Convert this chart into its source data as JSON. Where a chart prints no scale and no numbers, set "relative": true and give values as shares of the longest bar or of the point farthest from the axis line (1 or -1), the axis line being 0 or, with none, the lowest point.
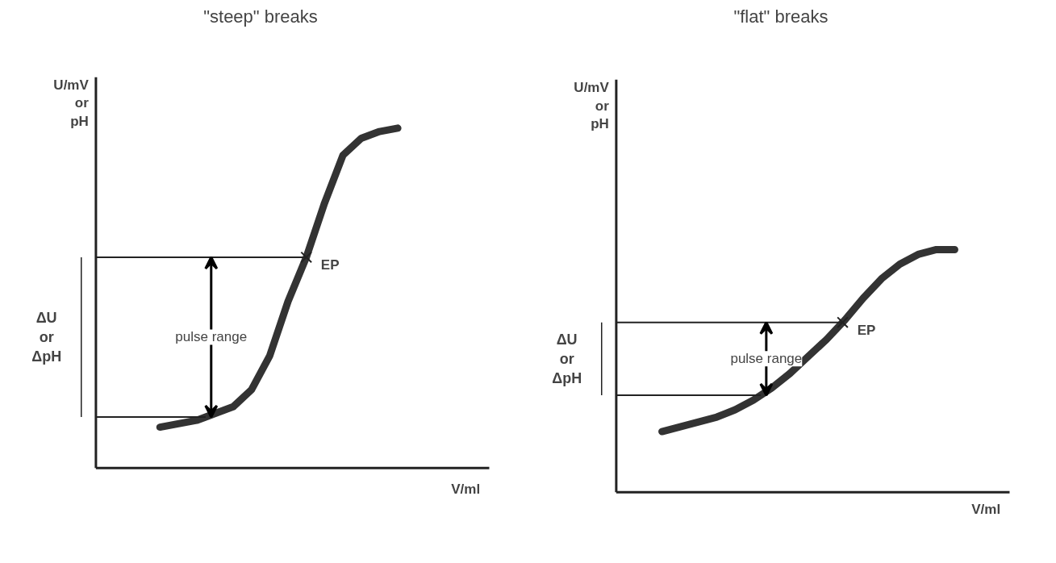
{
  "chart_data": [
    {
      "type": "line",
      "title": "\"steep\" breaks",
      "xlabel": "V/ml",
      "ylabel": "U/mV or pH",
      "relative": true,
      "categories": [
        null,
        null,
        null,
        null,
        null,
        null,
        null,
        null,
        null,
        null,
        null,
        null,
        null,
        null,
        null,
        null,
        null,
        null,
        null,
        null,
        null
      ],
      "series": [
        {
          "color": "#333333",
          "values": [
            null,
            null,
            null,
            0.12,
            0.13,
            0.14,
            0.16,
            0.18,
            0.23,
            0.33,
            0.49,
            0.62,
            0.78,
            0.92,
            0.97,
            0.99,
            1.0,
            null,
            null,
            null,
            null
          ]
        }
      ],
      "ref_lines": [
        {
          "axis": "y",
          "value": 0.62,
          "color": "#222222"
        },
        {
          "axis": "y",
          "value": 0.15,
          "color": "#222222"
        }
      ],
      "annotations": [
        "ΔU or ΔpH",
        "pulse range",
        "EP"
      ]
    },
    {
      "type": "line",
      "title": "\"flat\" breaks",
      "xlabel": "V/ml",
      "ylabel": "U/mV or pH",
      "relative": true,
      "categories": [
        null,
        null,
        null,
        null,
        null,
        null,
        null,
        null,
        null,
        null,
        null,
        null,
        null,
        null,
        null,
        null,
        null,
        null,
        null,
        null,
        null
      ],
      "series": [
        {
          "color": "#333333",
          "values": [
            null,
            null,
            0.25,
            0.27,
            0.29,
            0.31,
            0.34,
            0.38,
            0.43,
            0.49,
            0.56,
            0.63,
            0.71,
            0.8,
            0.88,
            0.94,
            0.98,
            1.0,
            1.0,
            null,
            null
          ]
        }
      ],
      "ref_lines": [
        {
          "axis": "y",
          "value": 0.7,
          "color": "#222222"
        },
        {
          "axis": "y",
          "value": 0.4,
          "color": "#222222"
        }
      ],
      "annotations": [
        "ΔU or ΔpH",
        "pulse range",
        "EP"
      ]
    }
  ]
}
